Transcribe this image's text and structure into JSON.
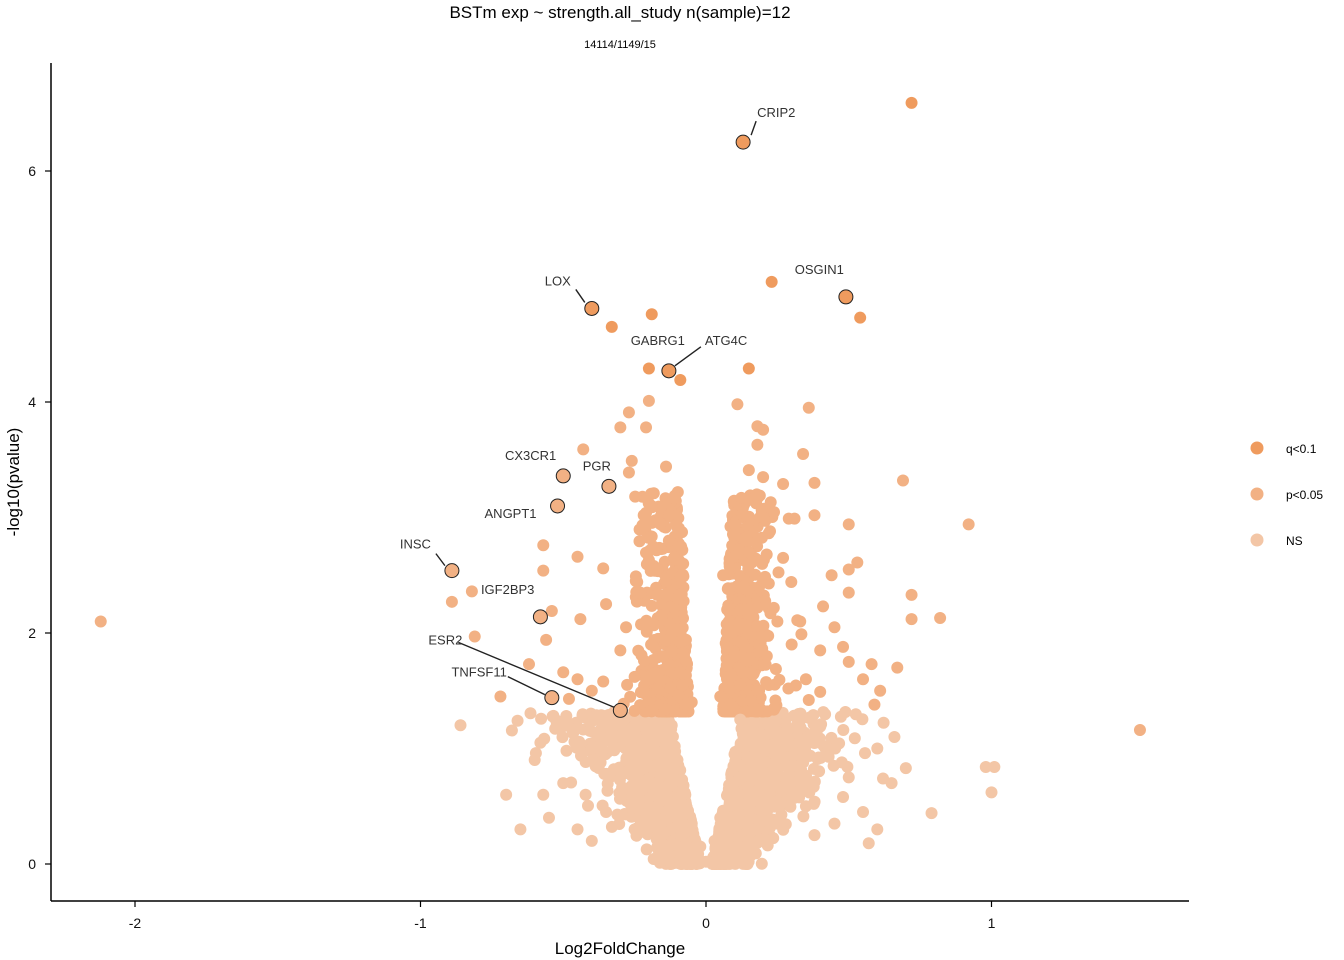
{
  "chart_data": {
    "type": "scatter",
    "title": "BSTm exp ~ strength.all_study n(sample)=12",
    "subtitle": "14114/1149/15",
    "xlabel": "Log2FoldChange",
    "ylabel": "-log10(pvalue)",
    "xlim": [
      -2.3,
      1.7
    ],
    "ylim": [
      -0.3,
      6.9
    ],
    "x_ticks": [
      -2,
      -1,
      0,
      1
    ],
    "y_ticks": [
      0,
      2,
      4,
      6
    ],
    "grid": false,
    "legend_position": "right",
    "colors": {
      "q<0.1": "#EF9B5E",
      "p<0.05": "#F2B184",
      "NS": "#F3C6A6"
    },
    "legend": [
      {
        "name": "q<0.1",
        "color": "#EF9B5E"
      },
      {
        "name": "p<0.05",
        "color": "#F2B184"
      },
      {
        "name": "NS",
        "color": "#F3C6A6"
      }
    ],
    "series": [
      {
        "name": "q<0.1",
        "points": [
          [
            0.72,
            6.59
          ],
          [
            0.13,
            6.25
          ],
          [
            0.23,
            5.04
          ],
          [
            0.49,
            4.91
          ],
          [
            -0.4,
            4.81
          ],
          [
            -0.19,
            4.76
          ],
          [
            0.54,
            4.73
          ],
          [
            -0.33,
            4.65
          ],
          [
            -0.2,
            4.29
          ],
          [
            -0.13,
            4.27
          ],
          [
            0.15,
            4.29
          ],
          [
            -0.09,
            4.19
          ]
        ]
      },
      {
        "name": "p<0.05",
        "points": [
          [
            -2.12,
            2.1
          ],
          [
            1.52,
            1.16
          ],
          [
            0.92,
            2.94
          ],
          [
            0.82,
            2.13
          ],
          [
            0.72,
            2.33
          ],
          [
            0.72,
            2.12
          ],
          [
            0.69,
            3.32
          ],
          [
            0.67,
            1.7
          ],
          [
            0.11,
            3.98
          ],
          [
            0.36,
            3.95
          ],
          [
            -0.2,
            4.01
          ],
          [
            -0.27,
            3.91
          ],
          [
            0.18,
            3.79
          ],
          [
            0.2,
            3.76
          ],
          [
            -0.21,
            3.78
          ],
          [
            -0.3,
            3.78
          ],
          [
            0.18,
            3.63
          ],
          [
            0.34,
            3.55
          ],
          [
            -0.43,
            3.59
          ],
          [
            -0.26,
            3.49
          ],
          [
            0.15,
            3.41
          ],
          [
            0.2,
            3.35
          ],
          [
            -0.27,
            3.39
          ],
          [
            -0.14,
            3.44
          ],
          [
            0.27,
            3.29
          ],
          [
            0.38,
            3.3
          ],
          [
            -0.19,
            3.1
          ],
          [
            0.2,
            3.0
          ],
          [
            0.29,
            2.99
          ],
          [
            0.31,
            2.99
          ],
          [
            -0.21,
            3.04
          ],
          [
            -0.16,
            2.95
          ],
          [
            0.38,
            3.02
          ],
          [
            0.5,
            2.94
          ],
          [
            -0.57,
            2.76
          ],
          [
            -0.45,
            2.66
          ],
          [
            0.44,
            2.5
          ],
          [
            0.53,
            2.61
          ],
          [
            0.5,
            2.55
          ],
          [
            -0.57,
            2.54
          ],
          [
            -0.36,
            2.56
          ],
          [
            0.5,
            2.35
          ],
          [
            0.41,
            2.23
          ],
          [
            -0.82,
            2.36
          ],
          [
            -0.89,
            2.27
          ],
          [
            -0.54,
            2.19
          ],
          [
            -0.44,
            2.12
          ],
          [
            -0.56,
            1.94
          ],
          [
            -0.81,
            1.97
          ],
          [
            0.48,
            1.88
          ],
          [
            0.5,
            1.75
          ],
          [
            0.58,
            1.73
          ],
          [
            0.61,
            1.5
          ],
          [
            -0.62,
            1.73
          ],
          [
            -0.72,
            1.45
          ],
          [
            -0.5,
            1.66
          ],
          [
            -0.45,
            1.6
          ],
          [
            0.55,
            1.6
          ],
          [
            -0.36,
            1.58
          ],
          [
            -0.4,
            1.5
          ],
          [
            0.59,
            1.38
          ],
          [
            0.36,
            1.42
          ],
          [
            0.4,
            1.49
          ],
          [
            -0.48,
            1.43
          ],
          [
            -0.25,
            1.62
          ],
          [
            -0.15,
            1.8
          ],
          [
            -0.12,
            2.0
          ],
          [
            -0.1,
            2.3
          ],
          [
            -0.08,
            2.6
          ],
          [
            -0.13,
            2.8
          ],
          [
            0.06,
            2.5
          ],
          [
            0.08,
            2.1
          ],
          [
            0.1,
            1.8
          ],
          [
            0.12,
            2.2
          ],
          [
            0.15,
            2.7
          ],
          [
            0.2,
            2.45
          ],
          [
            0.25,
            2.1
          ],
          [
            0.3,
            1.9
          ],
          [
            0.35,
            1.6
          ],
          [
            0.4,
            1.85
          ],
          [
            0.27,
            2.65
          ],
          [
            -0.17,
            2.55
          ],
          [
            -0.23,
            2.35
          ],
          [
            -0.28,
            2.05
          ],
          [
            -0.3,
            1.85
          ],
          [
            -0.2,
            1.6
          ],
          [
            0.22,
            1.55
          ],
          [
            0.16,
            1.65
          ],
          [
            0.05,
            1.45
          ],
          [
            -0.05,
            1.4
          ],
          [
            0.33,
            2.1
          ],
          [
            -0.35,
            2.25
          ],
          [
            0.45,
            2.05
          ]
        ]
      },
      {
        "name": "NS",
        "points": [
          [
            0.0,
            0.02
          ],
          [
            -0.02,
            0.15
          ],
          [
            0.03,
            0.2
          ],
          [
            -0.05,
            0.35
          ],
          [
            0.05,
            0.4
          ],
          [
            -0.08,
            0.6
          ],
          [
            0.08,
            0.65
          ],
          [
            -0.1,
            0.9
          ],
          [
            0.1,
            0.95
          ],
          [
            -0.12,
            1.2
          ],
          [
            0.12,
            1.25
          ],
          [
            -0.2,
            0.5
          ],
          [
            0.2,
            0.55
          ],
          [
            -0.3,
            0.8
          ],
          [
            0.3,
            0.85
          ],
          [
            -0.4,
            1.0
          ],
          [
            0.4,
            1.05
          ],
          [
            -0.25,
            0.3
          ],
          [
            0.25,
            0.35
          ],
          [
            -0.5,
            0.7
          ],
          [
            0.5,
            0.75
          ],
          [
            -0.6,
            0.9
          ],
          [
            0.6,
            1.0
          ],
          [
            -0.15,
            0.15
          ],
          [
            0.15,
            0.2
          ],
          [
            -0.35,
            0.45
          ],
          [
            0.35,
            0.5
          ],
          [
            -0.45,
            0.3
          ],
          [
            0.45,
            0.35
          ],
          [
            -0.55,
            0.4
          ],
          [
            0.55,
            0.45
          ],
          [
            -0.7,
            0.6
          ],
          [
            0.65,
            0.7
          ],
          [
            -0.57,
            0.6
          ],
          [
            -0.66,
            1.24
          ],
          [
            -0.58,
            1.05
          ],
          [
            0.79,
            0.44
          ],
          [
            0.98,
            0.84
          ],
          [
            1.01,
            0.84
          ],
          [
            1.0,
            0.62
          ],
          [
            0.7,
            0.83
          ],
          [
            0.62,
            0.74
          ],
          [
            0.57,
            0.18
          ],
          [
            0.48,
            0.58
          ],
          [
            0.66,
            1.1
          ],
          [
            -0.32,
            1.2
          ],
          [
            0.28,
            1.15
          ],
          [
            0.18,
            1.0
          ],
          [
            -0.18,
            1.05
          ],
          [
            -0.4,
            0.2
          ],
          [
            0.38,
            0.25
          ],
          [
            -0.65,
            0.3
          ],
          [
            0.6,
            0.3
          ]
        ]
      },
      {
        "name": "labeled",
        "points": [
          [
            0.13,
            6.25
          ],
          [
            -0.4,
            4.81
          ],
          [
            0.49,
            4.91
          ],
          [
            -0.13,
            4.27
          ],
          [
            -0.5,
            3.36
          ],
          [
            -0.34,
            3.27
          ],
          [
            -0.52,
            3.1
          ],
          [
            -0.89,
            2.54
          ],
          [
            -0.58,
            2.14
          ],
          [
            -0.54,
            1.44
          ],
          [
            -0.3,
            1.33
          ]
        ]
      }
    ],
    "labels": [
      {
        "gene": "CRIP2",
        "x": 0.13,
        "y": 6.25
      },
      {
        "gene": "OSGIN1",
        "x": 0.49,
        "y": 4.91
      },
      {
        "gene": "LOX",
        "x": -0.4,
        "y": 4.81
      },
      {
        "gene": "GABRG1",
        "x": -0.13,
        "y": 4.27
      },
      {
        "gene": "ATG4C",
        "x": -0.13,
        "y": 4.27
      },
      {
        "gene": "CX3CR1",
        "x": -0.5,
        "y": 3.36
      },
      {
        "gene": "PGR",
        "x": -0.34,
        "y": 3.27
      },
      {
        "gene": "ANGPT1",
        "x": -0.52,
        "y": 3.1
      },
      {
        "gene": "INSC",
        "x": -0.89,
        "y": 2.54
      },
      {
        "gene": "IGF2BP3",
        "x": -0.58,
        "y": 2.14
      },
      {
        "gene": "ESR2",
        "x": -0.3,
        "y": 1.33
      },
      {
        "gene": "TNFSF11",
        "x": -0.54,
        "y": 1.44
      }
    ]
  }
}
